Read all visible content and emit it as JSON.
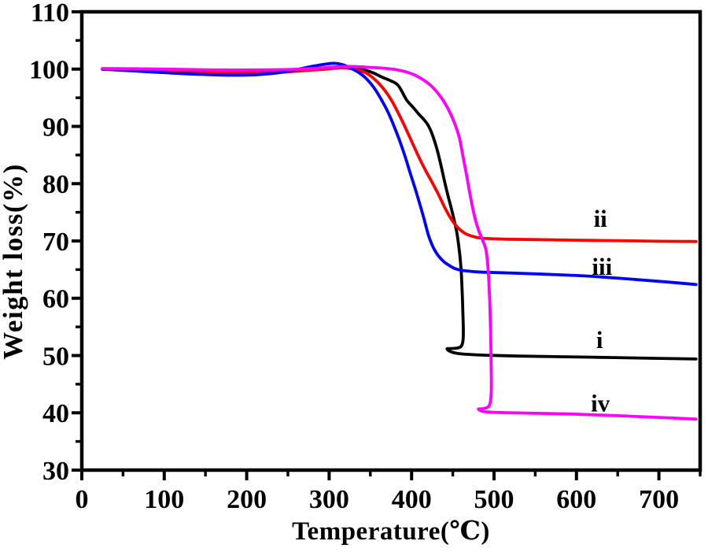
{
  "figure": {
    "background": "#ffffff",
    "text_color": "#000000",
    "axis_color": "#000000"
  },
  "chart_data": {
    "type": "line",
    "title": "",
    "xlabel": "Temperature(℃)",
    "ylabel": "Weight loss(%)",
    "xlim": [
      0,
      750
    ],
    "ylim": [
      30,
      110
    ],
    "grid": false,
    "legend_position": "inline-curve-labels",
    "x_major_ticks": [
      0,
      100,
      200,
      300,
      400,
      500,
      600,
      700
    ],
    "x_tick_labels": [
      "0",
      "100",
      "200",
      "300",
      "400",
      "500",
      "600",
      "700"
    ],
    "x_minor_ticks": [
      50,
      150,
      250,
      350,
      450,
      550,
      650,
      750
    ],
    "y_major_ticks": [
      30,
      40,
      50,
      60,
      70,
      80,
      90,
      100,
      110
    ],
    "y_tick_labels": [
      "30",
      "40",
      "50",
      "60",
      "70",
      "80",
      "90",
      "100",
      "110"
    ],
    "y_minor_ticks": [
      35,
      45,
      55,
      65,
      75,
      85,
      95,
      105
    ],
    "series": [
      {
        "name": "i",
        "label": "i",
        "color": "#000000",
        "label_x": 628,
        "label_y": 52.8,
        "points": [
          [
            25,
            100
          ],
          [
            80,
            99.85
          ],
          [
            140,
            99.6
          ],
          [
            200,
            99.5
          ],
          [
            250,
            99.65
          ],
          [
            285,
            99.95
          ],
          [
            305,
            100.2
          ],
          [
            318,
            100.3
          ],
          [
            332,
            100.1
          ],
          [
            344,
            99.8
          ],
          [
            354,
            99.3
          ],
          [
            364,
            98.6
          ],
          [
            374,
            98.0
          ],
          [
            384,
            97.1
          ],
          [
            394,
            94.6
          ],
          [
            402,
            93.3
          ],
          [
            409,
            92.1
          ],
          [
            415,
            91.2
          ],
          [
            420,
            90.2
          ],
          [
            424,
            89.0
          ],
          [
            428,
            87.4
          ],
          [
            432,
            85.4
          ],
          [
            436,
            83.0
          ],
          [
            440,
            80.4
          ],
          [
            444,
            78.0
          ],
          [
            448,
            75.8
          ],
          [
            452,
            73.4
          ],
          [
            455,
            71.4
          ],
          [
            457,
            69.4
          ],
          [
            459,
            66.9
          ],
          [
            460.5,
            64.0
          ],
          [
            461.5,
            60.5
          ],
          [
            462.3,
            57.0
          ],
          [
            462.8,
            54.5
          ],
          [
            462.5,
            52.8
          ],
          [
            461,
            51.8
          ],
          [
            458,
            51.4
          ],
          [
            452,
            51.25
          ],
          [
            446,
            51.2
          ],
          [
            443,
            51.2
          ],
          [
            445,
            50.85
          ],
          [
            450,
            50.55
          ],
          [
            457,
            50.35
          ],
          [
            468,
            50.2
          ],
          [
            490,
            50.05
          ],
          [
            530,
            49.9
          ],
          [
            580,
            49.8
          ],
          [
            640,
            49.65
          ],
          [
            700,
            49.5
          ],
          [
            745,
            49.4
          ]
        ]
      },
      {
        "name": "ii",
        "label": "ii",
        "color": "#ff0000",
        "label_x": 629,
        "label_y": 74.0,
        "points": [
          [
            25,
            100
          ],
          [
            80,
            99.8
          ],
          [
            140,
            99.5
          ],
          [
            195,
            99.35
          ],
          [
            235,
            99.4
          ],
          [
            268,
            99.7
          ],
          [
            295,
            100.0
          ],
          [
            312,
            100.2
          ],
          [
            326,
            100.1
          ],
          [
            336,
            99.8
          ],
          [
            345,
            99.3
          ],
          [
            353,
            98.5
          ],
          [
            361,
            97.4
          ],
          [
            369,
            96.0
          ],
          [
            377,
            94.2
          ],
          [
            385,
            92.0
          ],
          [
            393,
            89.6
          ],
          [
            401,
            87.1
          ],
          [
            409,
            84.6
          ],
          [
            417,
            82.3
          ],
          [
            425,
            80.2
          ],
          [
            433,
            78.0
          ],
          [
            441,
            75.6
          ],
          [
            449,
            73.6
          ],
          [
            457,
            72.2
          ],
          [
            465,
            71.3
          ],
          [
            474,
            70.8
          ],
          [
            484,
            70.5
          ],
          [
            496,
            70.4
          ],
          [
            515,
            70.3
          ],
          [
            545,
            70.25
          ],
          [
            590,
            70.15
          ],
          [
            650,
            70.05
          ],
          [
            700,
            69.95
          ],
          [
            745,
            69.9
          ]
        ]
      },
      {
        "name": "iii",
        "label": "iii",
        "color": "#0000ff",
        "label_x": 631,
        "label_y": 65.6,
        "points": [
          [
            25,
            100
          ],
          [
            60,
            99.7
          ],
          [
            110,
            99.3
          ],
          [
            160,
            99.0
          ],
          [
            200,
            98.95
          ],
          [
            235,
            99.3
          ],
          [
            260,
            99.9
          ],
          [
            280,
            100.5
          ],
          [
            297,
            100.9
          ],
          [
            308,
            101.0
          ],
          [
            318,
            100.7
          ],
          [
            327,
            100.1
          ],
          [
            336,
            99.4
          ],
          [
            344,
            98.5
          ],
          [
            351,
            97.4
          ],
          [
            357,
            96.2
          ],
          [
            364,
            94.5
          ],
          [
            371,
            92.6
          ],
          [
            378,
            90.3
          ],
          [
            385,
            87.7
          ],
          [
            392,
            84.8
          ],
          [
            398,
            82.0
          ],
          [
            404,
            79.3
          ],
          [
            410,
            76.4
          ],
          [
            415,
            73.9
          ],
          [
            420,
            71.2
          ],
          [
            424,
            69.6
          ],
          [
            428,
            68.4
          ],
          [
            433,
            67.3
          ],
          [
            439,
            66.4
          ],
          [
            446,
            65.7
          ],
          [
            454,
            65.1
          ],
          [
            464,
            64.8
          ],
          [
            480,
            64.6
          ],
          [
            520,
            64.4
          ],
          [
            560,
            64.2
          ],
          [
            610,
            63.9
          ],
          [
            660,
            63.4
          ],
          [
            705,
            62.9
          ],
          [
            745,
            62.4
          ]
        ]
      },
      {
        "name": "iv",
        "label": "iv",
        "color": "#ff00ff",
        "label_x": 629,
        "label_y": 41.7,
        "points": [
          [
            25,
            100.1
          ],
          [
            100,
            100.0
          ],
          [
            170,
            99.85
          ],
          [
            240,
            99.9
          ],
          [
            280,
            100.1
          ],
          [
            310,
            100.4
          ],
          [
            330,
            100.45
          ],
          [
            350,
            100.3
          ],
          [
            370,
            100.1
          ],
          [
            385,
            99.8
          ],
          [
            398,
            99.3
          ],
          [
            410,
            98.5
          ],
          [
            422,
            97.3
          ],
          [
            433,
            95.6
          ],
          [
            443,
            93.4
          ],
          [
            452,
            90.6
          ],
          [
            458,
            88.0
          ],
          [
            462,
            85.0
          ],
          [
            466,
            82.0
          ],
          [
            470,
            78.8
          ],
          [
            474,
            75.8
          ],
          [
            478,
            73.4
          ],
          [
            482,
            71.6
          ],
          [
            486,
            70.2
          ],
          [
            490,
            68.6
          ],
          [
            492,
            66.5
          ],
          [
            493.5,
            63.5
          ],
          [
            494.8,
            59.5
          ],
          [
            495.8,
            54.5
          ],
          [
            496.5,
            49.0
          ],
          [
            496.8,
            44.5
          ],
          [
            496,
            42.3
          ],
          [
            494,
            41.2
          ],
          [
            490,
            40.85
          ],
          [
            485,
            40.7
          ],
          [
            481,
            40.65
          ],
          [
            485,
            40.3
          ],
          [
            492,
            40.15
          ],
          [
            505,
            40.05
          ],
          [
            540,
            39.95
          ],
          [
            590,
            39.8
          ],
          [
            650,
            39.5
          ],
          [
            700,
            39.2
          ],
          [
            745,
            38.9
          ]
        ]
      }
    ]
  }
}
